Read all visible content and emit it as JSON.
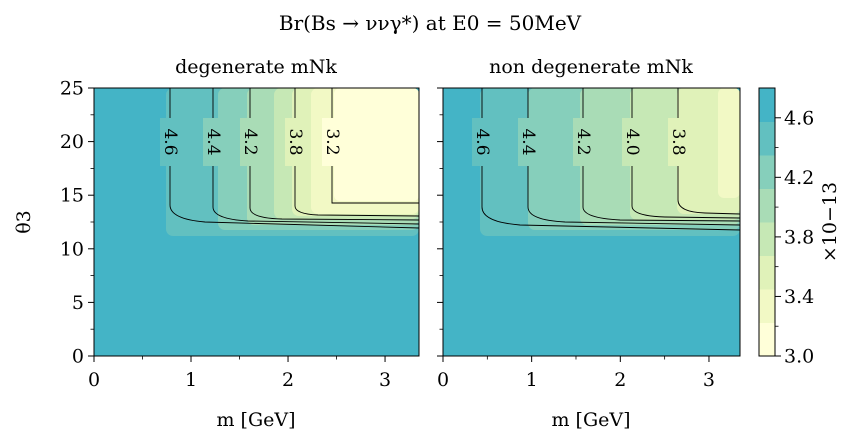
{
  "title": "Br(Bs → ννγ*) at E0 = 50MeV",
  "chart_data": {
    "type": "contour",
    "title": "Br(Bs → ννγ*) at E0 = 50MeV",
    "panels": [
      {
        "subtitle": "degenerate mNk",
        "xlabel": "m [GeV]",
        "ylabel": "θ3",
        "xlim": [
          0,
          3.35
        ],
        "ylim": [
          0,
          25
        ],
        "xticks": [
          0,
          1,
          2,
          3
        ],
        "yticks": [
          0,
          5,
          10,
          15,
          20,
          25
        ],
        "contours": [
          {
            "level": "4.6",
            "x": 0.85,
            "y": 11.4
          },
          {
            "level": "4.4",
            "x": 1.37,
            "y": 11.8
          },
          {
            "level": "4.2",
            "x": 1.77,
            "y": 12.3
          },
          {
            "level": "3.8",
            "x": 2.3,
            "y": 12.9
          },
          {
            "level": "3.2",
            "x": 2.7,
            "y": 14.3
          }
        ]
      },
      {
        "subtitle": "non degenerate mNk",
        "xlabel": "m [GeV]",
        "xlim": [
          0,
          3.35
        ],
        "ylim": [
          0,
          25
        ],
        "xticks": [
          0,
          1,
          2,
          3
        ],
        "yticks": [
          0,
          5,
          10,
          15,
          20,
          25
        ],
        "contours": [
          {
            "level": "4.6",
            "x": 0.4,
            "y": 11.4
          },
          {
            "level": "4.4",
            "x": 0.95,
            "y": 11.8
          },
          {
            "level": "4.2",
            "x": 1.55,
            "y": 12.3
          },
          {
            "level": "4.0",
            "x": 2.12,
            "y": 12.8
          },
          {
            "level": "3.8",
            "x": 2.65,
            "y": 13.4
          }
        ]
      }
    ],
    "colorbar": {
      "min": 3.0,
      "max": 4.8,
      "ticks": [
        3.0,
        3.4,
        3.8,
        4.2,
        4.6
      ],
      "tick_labels": [
        "3.0",
        "3.4",
        "3.8",
        "4.2",
        "4.6"
      ],
      "label": "×10−13",
      "colors": [
        "#ffffd9",
        "#f2f9c5",
        "#e0f2b9",
        "#c6e8b5",
        "#a9dcb6",
        "#86cfbb",
        "#62c0c0",
        "#44b4c6"
      ]
    }
  }
}
